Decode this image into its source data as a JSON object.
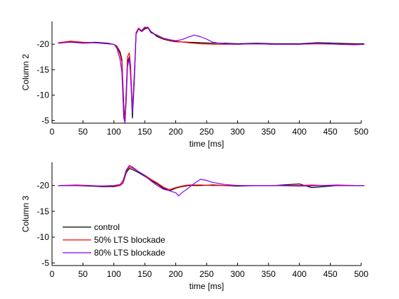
{
  "chart_data": [
    {
      "type": "line",
      "xlabel": "time [ms]",
      "ylabel": "Column 2",
      "xlim": [
        0,
        500
      ],
      "ylim": [
        -24.5,
        -4.5
      ],
      "y_reversed": true,
      "xticks": [
        0,
        50,
        100,
        150,
        200,
        250,
        300,
        350,
        400,
        450,
        500
      ],
      "yticks": [
        -20,
        -15,
        -10,
        -5
      ],
      "grid": false,
      "series": [
        {
          "name": "control",
          "color": "#000000",
          "x": [
            10,
            30,
            50,
            70,
            90,
            100,
            105,
            110,
            113,
            116,
            118,
            120,
            122,
            125,
            127,
            130,
            133,
            136,
            140,
            145,
            150,
            155,
            160,
            165,
            170,
            180,
            190,
            200,
            220,
            240,
            260,
            280,
            300,
            330,
            360,
            400,
            430,
            460,
            490,
            505
          ],
          "y": [
            -20.2,
            -20.5,
            -20.3,
            -20.4,
            -20.2,
            -20.0,
            -19.6,
            -18.5,
            -17.0,
            -8.0,
            -4.8,
            -10.5,
            -16.5,
            -17.5,
            -15.0,
            -5.5,
            -12.5,
            -22.0,
            -23.0,
            -22.5,
            -23.0,
            -23.2,
            -22.3,
            -22.0,
            -21.5,
            -21.0,
            -20.7,
            -20.5,
            -20.4,
            -20.3,
            -20.2,
            -20.2,
            -20.1,
            -20.2,
            -20.1,
            -20.1,
            -20.3,
            -20.2,
            -20.1,
            -20.1
          ]
        },
        {
          "name": "50% LTS blockade",
          "color": "#ff0000",
          "x": [
            10,
            30,
            50,
            70,
            90,
            100,
            105,
            110,
            113,
            116,
            118,
            120,
            122,
            125,
            127,
            130,
            133,
            136,
            140,
            145,
            150,
            155,
            160,
            165,
            170,
            180,
            190,
            200,
            220,
            240,
            260,
            280,
            300,
            330,
            360,
            400,
            430,
            460,
            490,
            505
          ],
          "y": [
            -20.3,
            -20.6,
            -20.4,
            -20.3,
            -20.1,
            -20.0,
            -19.5,
            -18.0,
            -16.5,
            -7.0,
            -4.8,
            -11.0,
            -17.5,
            -18.3,
            -16.0,
            -7.0,
            -14.0,
            -22.3,
            -23.2,
            -22.6,
            -23.2,
            -23.4,
            -22.5,
            -22.1,
            -21.7,
            -21.1,
            -20.8,
            -20.6,
            -20.3,
            -20.1,
            -20.0,
            -20.0,
            -20.0,
            -20.1,
            -20.0,
            -20.0,
            -20.1,
            -20.0,
            -20.0,
            -20.0
          ]
        },
        {
          "name": "80% LTS blockade",
          "color": "#7f00ff",
          "x": [
            10,
            30,
            50,
            70,
            90,
            100,
            105,
            110,
            113,
            116,
            118,
            120,
            122,
            125,
            127,
            130,
            133,
            136,
            140,
            145,
            150,
            155,
            160,
            165,
            170,
            180,
            190,
            200,
            210,
            220,
            230,
            240,
            250,
            260,
            270,
            280,
            300,
            330,
            360,
            400,
            430,
            460,
            490,
            505
          ],
          "y": [
            -20.2,
            -20.4,
            -20.2,
            -20.3,
            -20.1,
            -20.0,
            -19.2,
            -17.0,
            -14.5,
            -5.5,
            -4.6,
            -9.0,
            -15.5,
            -17.3,
            -14.0,
            -6.5,
            -13.0,
            -22.0,
            -23.0,
            -22.7,
            -23.4,
            -23.2,
            -22.5,
            -22.0,
            -21.8,
            -21.2,
            -20.9,
            -20.7,
            -20.9,
            -21.4,
            -21.8,
            -21.5,
            -21.0,
            -20.4,
            -20.2,
            -20.1,
            -20.0,
            -20.1,
            -20.0,
            -20.0,
            -20.2,
            -20.0,
            -19.9,
            -20.0
          ]
        }
      ]
    },
    {
      "type": "line",
      "xlabel": "time [ms]",
      "ylabel": "Column 3",
      "xlim": [
        0,
        500
      ],
      "ylim": [
        -24.5,
        -4.5
      ],
      "y_reversed": true,
      "xticks": [
        0,
        50,
        100,
        150,
        200,
        250,
        300,
        350,
        400,
        450,
        500
      ],
      "yticks": [
        -20,
        -15,
        -10,
        -5
      ],
      "grid": false,
      "legend": {
        "position": "bottom-left",
        "entries": [
          "control",
          "50% LTS blockade",
          "80% LTS blockade"
        ]
      },
      "series": [
        {
          "name": "control",
          "color": "#000000",
          "x": [
            10,
            40,
            80,
            100,
            110,
            115,
            120,
            125,
            130,
            140,
            150,
            160,
            170,
            180,
            190,
            200,
            210,
            220,
            240,
            260,
            280,
            300,
            330,
            360,
            400,
            420,
            440,
            460,
            490,
            505
          ],
          "y": [
            -20.0,
            -20.0,
            -19.8,
            -19.8,
            -20.0,
            -20.5,
            -22.5,
            -23.3,
            -23.1,
            -22.5,
            -21.8,
            -21.0,
            -20.3,
            -19.5,
            -19.0,
            -19.5,
            -19.8,
            -20.0,
            -20.0,
            -20.1,
            -20.0,
            -19.9,
            -20.0,
            -20.0,
            -20.3,
            -19.6,
            -19.8,
            -20.0,
            -20.0,
            -20.0
          ]
        },
        {
          "name": "50% LTS blockade",
          "color": "#ff0000",
          "x": [
            10,
            40,
            80,
            100,
            110,
            115,
            120,
            125,
            130,
            140,
            150,
            160,
            170,
            180,
            190,
            200,
            210,
            220,
            240,
            260,
            280,
            300,
            330,
            360,
            400,
            420,
            440,
            460,
            490,
            505
          ],
          "y": [
            -20.0,
            -20.1,
            -19.9,
            -19.9,
            -20.0,
            -20.6,
            -22.8,
            -23.6,
            -23.4,
            -22.7,
            -22.0,
            -21.2,
            -20.5,
            -19.7,
            -19.2,
            -19.6,
            -19.9,
            -20.1,
            -20.1,
            -20.0,
            -20.0,
            -20.0,
            -20.0,
            -20.0,
            -20.0,
            -20.1,
            -20.0,
            -20.1,
            -20.0,
            -20.0
          ]
        },
        {
          "name": "80% LTS blockade",
          "color": "#7f00ff",
          "x": [
            10,
            40,
            80,
            100,
            110,
            115,
            120,
            125,
            130,
            140,
            150,
            160,
            170,
            180,
            190,
            200,
            205,
            210,
            220,
            230,
            240,
            250,
            260,
            280,
            300,
            330,
            360,
            400,
            440,
            490,
            505
          ],
          "y": [
            -20.0,
            -20.0,
            -19.9,
            -20.0,
            -20.2,
            -21.0,
            -23.0,
            -23.9,
            -23.6,
            -22.7,
            -21.9,
            -20.9,
            -20.0,
            -19.3,
            -19.0,
            -18.6,
            -18.0,
            -18.6,
            -19.5,
            -20.4,
            -21.2,
            -21.0,
            -20.6,
            -20.2,
            -20.0,
            -20.0,
            -20.0,
            -19.9,
            -20.0,
            -20.0,
            -20.0
          ]
        }
      ]
    }
  ]
}
